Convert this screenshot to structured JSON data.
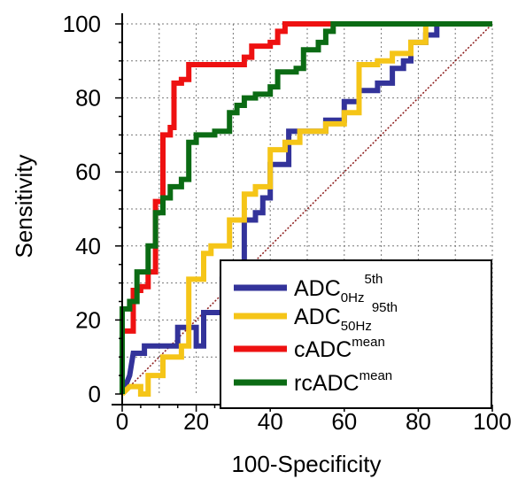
{
  "chart_data": {
    "type": "line",
    "title": "",
    "xlabel": "100-Specificity",
    "ylabel": "Sensitivity",
    "xlim": [
      0,
      100
    ],
    "ylim": [
      0,
      100
    ],
    "xticks": [
      "0",
      "20",
      "40",
      "60",
      "80",
      "100"
    ],
    "yticks": [
      "0",
      "20",
      "40",
      "60",
      "80",
      "100"
    ],
    "grid": true,
    "legend_position": "bottom-right",
    "reference_line": {
      "style": "dotted",
      "color": "#8b1a1a",
      "points": [
        [
          0,
          0
        ],
        [
          100,
          100
        ]
      ]
    },
    "series": [
      {
        "name_main": "ADC",
        "name_sub": "0Hz",
        "name_sup": "5th",
        "color": "#33339a",
        "points": [
          [
            0,
            0
          ],
          [
            2,
            5
          ],
          [
            3,
            11
          ],
          [
            6,
            11
          ],
          [
            6,
            13
          ],
          [
            13,
            13
          ],
          [
            15,
            13
          ],
          [
            15,
            18
          ],
          [
            20,
            18
          ],
          [
            20,
            13
          ],
          [
            22,
            13
          ],
          [
            22,
            22
          ],
          [
            27,
            22
          ],
          [
            27,
            31
          ],
          [
            29,
            31
          ],
          [
            31,
            35
          ],
          [
            33,
            35
          ],
          [
            33,
            47
          ],
          [
            36,
            47
          ],
          [
            36,
            49
          ],
          [
            38,
            49
          ],
          [
            38,
            53
          ],
          [
            40,
            53
          ],
          [
            40,
            62
          ],
          [
            43,
            62
          ],
          [
            45,
            62
          ],
          [
            45,
            71
          ],
          [
            50,
            71
          ],
          [
            55,
            71
          ],
          [
            55,
            74
          ],
          [
            60,
            74
          ],
          [
            60,
            79
          ],
          [
            64,
            79
          ],
          [
            64,
            82
          ],
          [
            69,
            82
          ],
          [
            69,
            84
          ],
          [
            73,
            84
          ],
          [
            73,
            88
          ],
          [
            76,
            88
          ],
          [
            76,
            90
          ],
          [
            78,
            90
          ],
          [
            78,
            95
          ],
          [
            82,
            95
          ],
          [
            82,
            97
          ],
          [
            85,
            97
          ],
          [
            85,
            100
          ],
          [
            95,
            100
          ],
          [
            100,
            100
          ]
        ]
      },
      {
        "name_main": "ADC",
        "name_sub": "50Hz",
        "name_sup": "95th",
        "color": "#f5c518",
        "points": [
          [
            0,
            0
          ],
          [
            2,
            2
          ],
          [
            5,
            2
          ],
          [
            5,
            0
          ],
          [
            7,
            0
          ],
          [
            7,
            5
          ],
          [
            11,
            5
          ],
          [
            11,
            10
          ],
          [
            16,
            10
          ],
          [
            16,
            13
          ],
          [
            18,
            13
          ],
          [
            18,
            31
          ],
          [
            22,
            31
          ],
          [
            22,
            38
          ],
          [
            24,
            38
          ],
          [
            24,
            40
          ],
          [
            29,
            40
          ],
          [
            29,
            47
          ],
          [
            33,
            47
          ],
          [
            33,
            54
          ],
          [
            36,
            54
          ],
          [
            36,
            56
          ],
          [
            40,
            56
          ],
          [
            40,
            66
          ],
          [
            44,
            66
          ],
          [
            44,
            68
          ],
          [
            48,
            68
          ],
          [
            48,
            71
          ],
          [
            55,
            71
          ],
          [
            55,
            73
          ],
          [
            60,
            73
          ],
          [
            60,
            76
          ],
          [
            64,
            76
          ],
          [
            64,
            89
          ],
          [
            69,
            89
          ],
          [
            69,
            90
          ],
          [
            73,
            90
          ],
          [
            73,
            92
          ],
          [
            78,
            92
          ],
          [
            78,
            95
          ],
          [
            82,
            95
          ],
          [
            82,
            100
          ],
          [
            100,
            100
          ]
        ]
      },
      {
        "name_main": "cADC",
        "name_sub": "",
        "name_sup": "mean",
        "color": "#ee1111",
        "points": [
          [
            0,
            0
          ],
          [
            0,
            17
          ],
          [
            3,
            17
          ],
          [
            3,
            28
          ],
          [
            5,
            28
          ],
          [
            5,
            29
          ],
          [
            7,
            29
          ],
          [
            7,
            33
          ],
          [
            9,
            33
          ],
          [
            9,
            52
          ],
          [
            11,
            52
          ],
          [
            11,
            70
          ],
          [
            13,
            70
          ],
          [
            13,
            72
          ],
          [
            14,
            72
          ],
          [
            14,
            84
          ],
          [
            16,
            84
          ],
          [
            16,
            85
          ],
          [
            18,
            85
          ],
          [
            18,
            89
          ],
          [
            33,
            89
          ],
          [
            33,
            91
          ],
          [
            35,
            91
          ],
          [
            35,
            94
          ],
          [
            40,
            94
          ],
          [
            40,
            95
          ],
          [
            42,
            95
          ],
          [
            42,
            98
          ],
          [
            44,
            98
          ],
          [
            44,
            100
          ],
          [
            60,
            100
          ],
          [
            100,
            100
          ]
        ]
      },
      {
        "name_main": "rcADC",
        "name_sub": "",
        "name_sup": "mean",
        "color": "#0b6b14",
        "points": [
          [
            0,
            0
          ],
          [
            0,
            23
          ],
          [
            2,
            23
          ],
          [
            2,
            25
          ],
          [
            4,
            25
          ],
          [
            4,
            33
          ],
          [
            7,
            33
          ],
          [
            7,
            40
          ],
          [
            9,
            40
          ],
          [
            9,
            49
          ],
          [
            11,
            49
          ],
          [
            11,
            53
          ],
          [
            13,
            53
          ],
          [
            13,
            56
          ],
          [
            16,
            56
          ],
          [
            16,
            58
          ],
          [
            18,
            58
          ],
          [
            18,
            68
          ],
          [
            20,
            68
          ],
          [
            20,
            70
          ],
          [
            25,
            70
          ],
          [
            25,
            71
          ],
          [
            29,
            71
          ],
          [
            29,
            76
          ],
          [
            31,
            76
          ],
          [
            31,
            78
          ],
          [
            33,
            78
          ],
          [
            33,
            80
          ],
          [
            36,
            80
          ],
          [
            36,
            81
          ],
          [
            40,
            81
          ],
          [
            40,
            83
          ],
          [
            42,
            83
          ],
          [
            42,
            87
          ],
          [
            47,
            87
          ],
          [
            47,
            88
          ],
          [
            49,
            88
          ],
          [
            49,
            93
          ],
          [
            53,
            93
          ],
          [
            53,
            95
          ],
          [
            55,
            95
          ],
          [
            55,
            98
          ],
          [
            57,
            98
          ],
          [
            57,
            100
          ],
          [
            100,
            100
          ]
        ]
      }
    ]
  }
}
